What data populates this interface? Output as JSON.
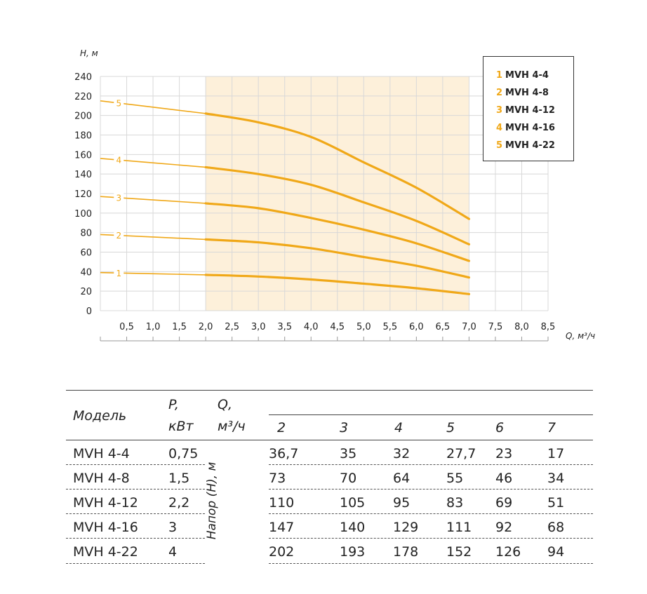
{
  "chart_data": {
    "type": "line",
    "ylabel": "H, м",
    "xlabel": "Q, м³/ч",
    "ylim": [
      0,
      240
    ],
    "xlim": [
      0,
      8.5
    ],
    "y_ticks": [
      "0",
      "20",
      "40",
      "60",
      "80",
      "100",
      "120",
      "140",
      "160",
      "180",
      "200",
      "220",
      "240"
    ],
    "x_ticks": [
      "0,5",
      "1,0",
      "1,5",
      "2,0",
      "2,5",
      "3,0",
      "3,5",
      "4,0",
      "4,5",
      "5,0",
      "5,5",
      "6,0",
      "6,5",
      "7,0",
      "7,5",
      "8,0",
      "8,5"
    ],
    "highlight_range": [
      2.0,
      7.0
    ],
    "grid": true,
    "legend_position": "top-right",
    "series": [
      {
        "name": "MVH 4-4",
        "label": "1",
        "x": [
          0,
          2,
          3,
          4,
          5,
          6,
          7
        ],
        "y": [
          39,
          36.7,
          35,
          32,
          27.7,
          23,
          17
        ]
      },
      {
        "name": "MVH 4-8",
        "label": "2",
        "x": [
          0,
          2,
          3,
          4,
          5,
          6,
          7
        ],
        "y": [
          78,
          73,
          70,
          64,
          55,
          46,
          34
        ]
      },
      {
        "name": "MVH 4-12",
        "label": "3",
        "x": [
          0,
          2,
          3,
          4,
          5,
          6,
          7
        ],
        "y": [
          117,
          110,
          105,
          95,
          83,
          69,
          51
        ]
      },
      {
        "name": "MVH 4-16",
        "label": "4",
        "x": [
          0,
          2,
          3,
          4,
          5,
          6,
          7
        ],
        "y": [
          156,
          147,
          140,
          129,
          111,
          92,
          68
        ]
      },
      {
        "name": "MVH 4-22",
        "label": "5",
        "x": [
          0,
          2,
          3,
          4,
          5,
          6,
          7
        ],
        "y": [
          215,
          202,
          193,
          178,
          152,
          126,
          94
        ]
      }
    ],
    "colors": {
      "curve": "#f0a818",
      "highlight": "#fdf0da",
      "grid": "#d8d8d8"
    }
  },
  "legend": [
    {
      "num": "1",
      "name": "MVH 4-4"
    },
    {
      "num": "2",
      "name": "MVH 4-8"
    },
    {
      "num": "3",
      "name": "MVH 4-12"
    },
    {
      "num": "4",
      "name": "MVH 4-16"
    },
    {
      "num": "5",
      "name": "MVH 4-22"
    }
  ],
  "table": {
    "header": {
      "model": "Модель",
      "power_line1": "P,",
      "power_line2": "кВт",
      "flow_line1": "Q,",
      "flow_line2": "м³/ч",
      "flows": [
        "2",
        "3",
        "4",
        "5",
        "6",
        "7"
      ]
    },
    "head_label": "Напор (H), м",
    "rows": [
      {
        "model": "MVH 4-4",
        "power": "0,75",
        "values": [
          "36,7",
          "35",
          "32",
          "27,7",
          "23",
          "17"
        ]
      },
      {
        "model": "MVH 4-8",
        "power": "1,5",
        "values": [
          "73",
          "70",
          "64",
          "55",
          "46",
          "34"
        ]
      },
      {
        "model": "MVH 4-12",
        "power": "2,2",
        "values": [
          "110",
          "105",
          "95",
          "83",
          "69",
          "51"
        ]
      },
      {
        "model": "MVH 4-16",
        "power": "3",
        "values": [
          "147",
          "140",
          "129",
          "111",
          "92",
          "68"
        ]
      },
      {
        "model": "MVH 4-22",
        "power": "4",
        "values": [
          "202",
          "193",
          "178",
          "152",
          "126",
          "94"
        ]
      }
    ]
  }
}
